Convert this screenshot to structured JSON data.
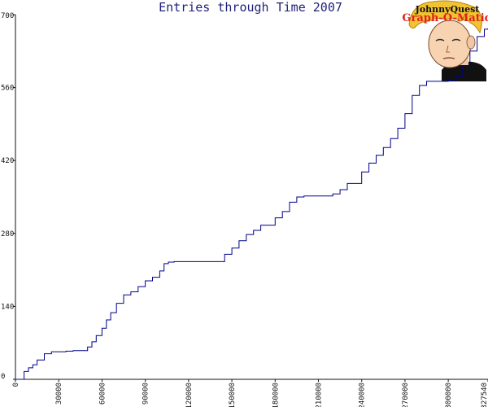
{
  "chart_data": {
    "type": "line",
    "title": "Entries through Time 2007",
    "xlabel": "",
    "ylabel": "",
    "xlim": [
      0,
      327540
    ],
    "ylim": [
      0,
      700
    ],
    "x_ticks": [
      0,
      30000,
      60000,
      90000,
      120000,
      150000,
      180000,
      210000,
      240000,
      270000,
      300000,
      327540
    ],
    "x_tick_labels": [
      "0",
      "30000",
      "60000",
      "90000",
      "120000",
      "150000",
      "180000",
      "210000",
      "240000",
      "270000",
      "300000",
      "327540"
    ],
    "y_ticks": [
      0,
      140,
      280,
      420,
      560,
      700
    ],
    "y_tick_labels": [
      "0",
      "140",
      "280",
      "420",
      "560",
      "700"
    ],
    "grid": false,
    "line_color": "#00008b",
    "series": [
      {
        "x": [
          0,
          3000,
          6000,
          9000,
          12000,
          15000,
          20000,
          25000,
          30000,
          35000,
          40000,
          45000,
          50000,
          53000,
          56000,
          60000,
          63000,
          66000,
          70000,
          75000,
          80000,
          85000,
          90000,
          95000,
          100000,
          103000,
          106000,
          110000,
          120000,
          130000,
          140000,
          145000,
          150000,
          155000,
          160000,
          165000,
          170000,
          180000,
          185000,
          190000,
          195000,
          200000,
          210000,
          215000,
          220000,
          225000,
          230000,
          240000,
          245000,
          250000,
          255000,
          260000,
          265000,
          270000,
          275000,
          280000,
          285000,
          290000,
          295000,
          300000,
          305000,
          310000,
          315000,
          320000,
          325000,
          327540
        ],
        "y": [
          0,
          0,
          15,
          22,
          28,
          37,
          49,
          53,
          53,
          54,
          55,
          55,
          62,
          72,
          84,
          98,
          114,
          128,
          146,
          162,
          168,
          178,
          189,
          196,
          208,
          222,
          225,
          226,
          226,
          226,
          226,
          240,
          252,
          266,
          278,
          286,
          296,
          310,
          322,
          340,
          350,
          352,
          352,
          352,
          356,
          364,
          376,
          398,
          415,
          430,
          445,
          462,
          482,
          510,
          545,
          564,
          572,
          572,
          572,
          574,
          582,
          602,
          630,
          658,
          672,
          674
        ]
      }
    ]
  },
  "logo": {
    "line1": "JohnnyQuest",
    "line2": "Graph-O-Matic"
  },
  "colors": {
    "axis": "#111111",
    "title": "#1f1f7a",
    "line": "#00008b",
    "logo_red": "#e0211a",
    "hair": "#f1c232"
  }
}
